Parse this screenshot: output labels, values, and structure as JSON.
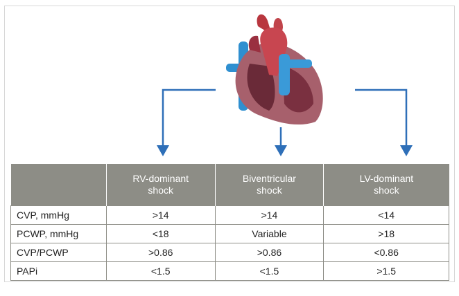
{
  "table": {
    "header": [
      "RV-dominant shock",
      "Biventricular shock",
      "LV-dominant shock"
    ],
    "rows": [
      [
        "CVP, mmHg",
        ">14",
        ">14",
        "<14"
      ],
      [
        "PCWP, mmHg",
        "<18",
        "Variable",
        ">18"
      ],
      [
        "CVP/PCWP",
        ">0.86",
        ">0.86",
        "<0.86"
      ],
      [
        "PAPi",
        "<1.5",
        "<1.5",
        ">1.5"
      ]
    ]
  }
}
